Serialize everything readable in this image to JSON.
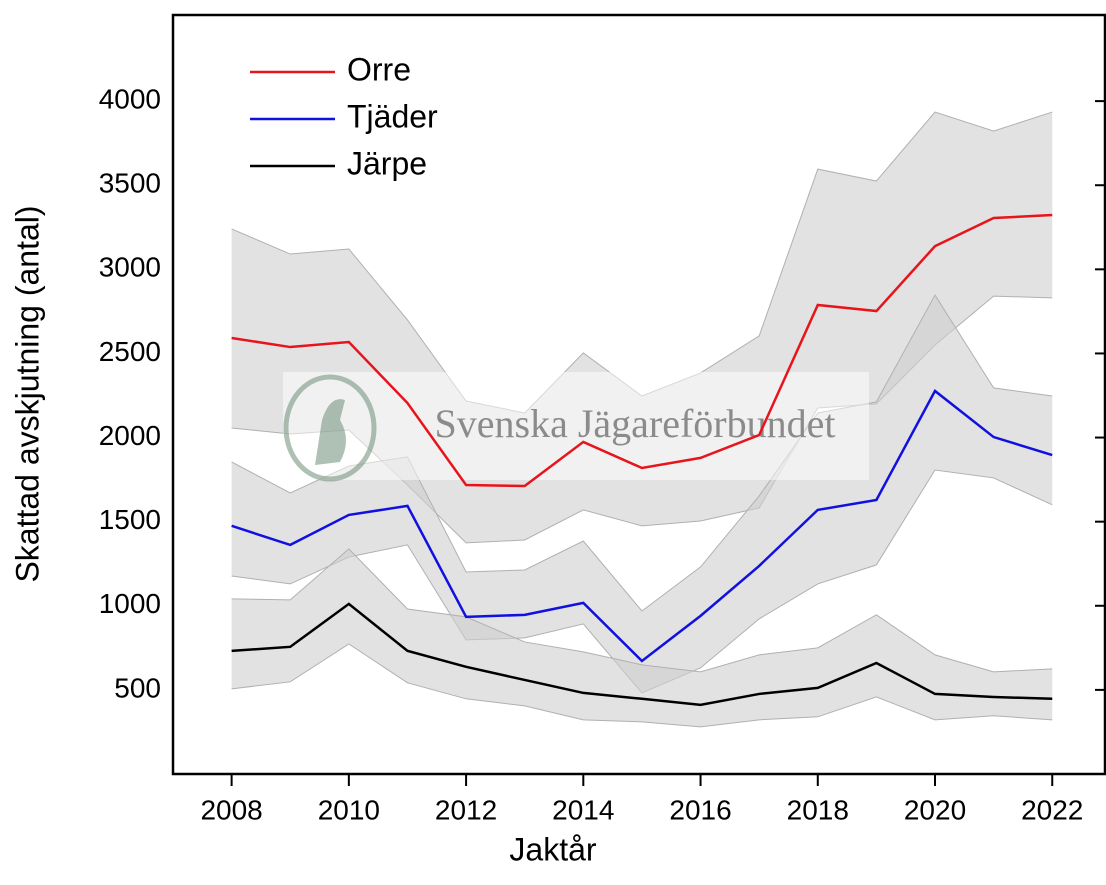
{
  "chart_data": {
    "type": "line",
    "xlabel": "Jaktår",
    "ylabel": "Skattad avskjutning (antal)",
    "watermark": "Svenska Jägareförbundet",
    "x": [
      2008,
      2009,
      2010,
      2011,
      2012,
      2013,
      2014,
      2015,
      2016,
      2017,
      2018,
      2019,
      2020,
      2021,
      2022
    ],
    "series": [
      {
        "name": "Orre",
        "color": "#e8141c",
        "values": [
          2592,
          2538,
          2568,
          2205,
          1718,
          1712,
          1974,
          1819,
          1879,
          2015,
          2788,
          2752,
          3138,
          3305,
          3323
        ],
        "upper": [
          3240,
          3091,
          3121,
          2699,
          2217,
          2146,
          2503,
          2247,
          2384,
          2604,
          3596,
          3525,
          3935,
          3822,
          3935
        ],
        "lower": [
          2057,
          2021,
          2045,
          1718,
          1374,
          1391,
          1570,
          1475,
          1504,
          1582,
          2176,
          2200,
          2550,
          2841,
          2830
        ]
      },
      {
        "name": "Tjäder",
        "color": "#1010e0",
        "values": [
          1475,
          1362,
          1540,
          1594,
          934,
          946,
          1017,
          672,
          940,
          1237,
          1570,
          1629,
          2277,
          2003,
          1896
        ],
        "upper": [
          1855,
          1671,
          1831,
          1885,
          1201,
          1213,
          1385,
          969,
          1231,
          1653,
          2146,
          2212,
          2847,
          2295,
          2247
        ],
        "lower": [
          1177,
          1130,
          1290,
          1362,
          797,
          809,
          892,
          482,
          631,
          922,
          1130,
          1243,
          1807,
          1760,
          1600
        ]
      },
      {
        "name": "Järpe",
        "color": "#000000",
        "values": [
          732,
          756,
          1011,
          732,
          637,
          559,
          482,
          447,
          411,
          476,
          512,
          660,
          476,
          458,
          447
        ],
        "upper": [
          1041,
          1035,
          1338,
          981,
          934,
          785,
          726,
          649,
          607,
          708,
          750,
          946,
          708,
          607,
          625
        ],
        "lower": [
          506,
          548,
          773,
          542,
          447,
          405,
          322,
          310,
          280,
          322,
          340,
          458,
          322,
          346,
          322
        ]
      }
    ],
    "band_color": "#cfcfcf",
    "xlim": [
      2007,
      2022.9
    ],
    "xticks": [
      2008,
      2010,
      2012,
      2014,
      2016,
      2018,
      2020,
      2022
    ],
    "ylim": [
      0,
      4500
    ],
    "yticks": [
      500,
      1000,
      1500,
      2000,
      2500,
      3000,
      3500,
      4000
    ],
    "legend": "upper left"
  }
}
